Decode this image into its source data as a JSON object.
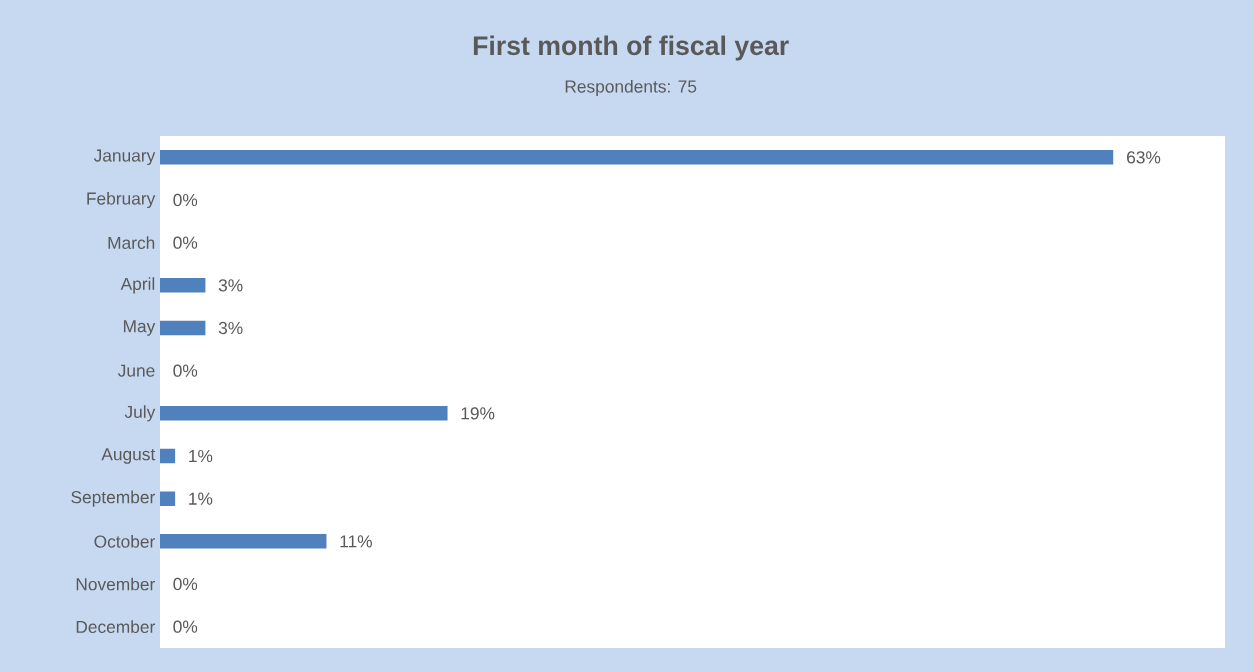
{
  "chart_data": {
    "type": "bar",
    "orientation": "horizontal",
    "title": "First month of fiscal year",
    "subtitle": "Respondents: 75",
    "categories": [
      "January",
      "February",
      "March",
      "April",
      "May",
      "June",
      "July",
      "August",
      "September",
      "October",
      "November",
      "December"
    ],
    "values": [
      63,
      0,
      0,
      3,
      3,
      0,
      19,
      1,
      1,
      11,
      0,
      0
    ],
    "value_labels": [
      "63%",
      "0%",
      "0%",
      "3%",
      "3%",
      "0%",
      "19%",
      "1%",
      "1%",
      "11%",
      "0%",
      "0%"
    ],
    "color": "#4f81bd",
    "tick_labels": "y"
  }
}
